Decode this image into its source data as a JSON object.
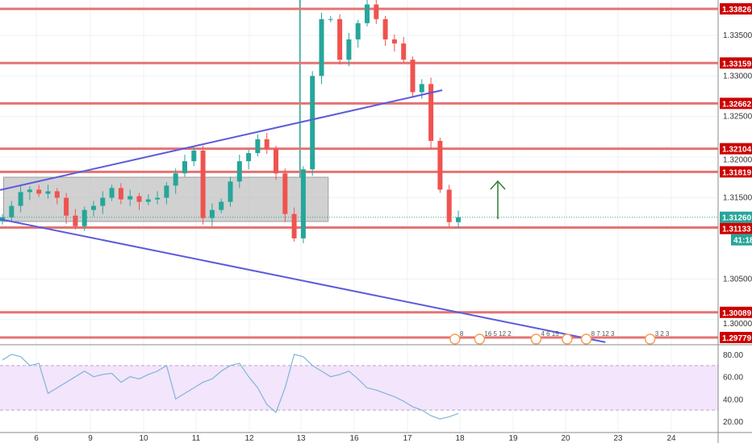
{
  "chart_data": {
    "type": "candlestick",
    "price_axis": {
      "ticks": [
        "1.33500",
        "1.33000",
        "1.32500",
        "1.32000",
        "1.31500",
        "1.30500",
        "1.30000"
      ],
      "range": [
        1.2965,
        1.3393
      ]
    },
    "x_axis": {
      "ticks": [
        "6",
        "9",
        "10",
        "11",
        "12",
        "13",
        "16",
        "17",
        "18",
        "19",
        "20",
        "23",
        "24"
      ]
    },
    "closes": [
      1.3126,
      1.314,
      1.3157,
      1.316,
      1.3155,
      1.3158,
      1.315,
      1.3128,
      1.3115,
      1.3135,
      1.314,
      1.315,
      1.3162,
      1.3148,
      1.3152,
      1.3145,
      1.3148,
      1.315,
      1.3165,
      1.318,
      1.3195,
      1.3208,
      1.3125,
      1.3135,
      1.3145,
      1.317,
      1.3195,
      1.3205,
      1.3222,
      1.321,
      1.318,
      1.313,
      1.31,
      1.3185,
      1.33,
      1.337,
      1.337,
      1.332,
      1.3345,
      1.3365,
      1.3388,
      1.337,
      1.3345,
      1.334,
      1.332,
      1.328,
      1.329,
      1.322,
      1.316,
      1.312,
      1.3126
    ],
    "horizontal_levels": [
      "1.33826",
      "1.33159",
      "1.32662",
      "1.32104",
      "1.31819",
      "1.31133",
      "1.30089",
      "1.29779"
    ],
    "current_price": "1.31260",
    "countdown": "41:18",
    "trend_lines": [
      {
        "from": [
          0,
          1.31595
        ],
        "to": [
          48.5,
          1.32824
        ]
      },
      {
        "from": [
          0,
          1.31237
        ],
        "to": [
          66.4,
          1.29721
        ]
      }
    ],
    "range_box": {
      "from_bar": 0.4,
      "to_bar": 36,
      "top": 1.31753,
      "bottom": 1.31208
    },
    "vertical_marker_bar": 32.9,
    "arrow": {
      "bar": 54.6,
      "from": 1.31238,
      "to": 1.31704,
      "direction": "up"
    },
    "events": [
      {
        "bar": 49.9,
        "label": "8"
      },
      {
        "bar": 52.6,
        "label": "16 5 12 2"
      },
      {
        "bar": 58.8,
        "label": "4 6 15"
      },
      {
        "bar": 62.2,
        "label": ""
      },
      {
        "bar": 64.3,
        "label": "8 7 12 3"
      },
      {
        "bar": 71.3,
        "label": "3 2 3"
      }
    ],
    "rsi": {
      "ticks": [
        "80.00",
        "60.00",
        "40.00",
        "20.00"
      ],
      "band": [
        30,
        70
      ],
      "values": [
        75,
        80,
        78,
        70,
        72,
        45,
        50,
        55,
        60,
        65,
        60,
        62,
        63,
        55,
        60,
        58,
        62,
        65,
        70,
        40,
        45,
        50,
        55,
        58,
        65,
        70,
        72,
        60,
        50,
        35,
        28,
        50,
        80,
        78,
        70,
        65,
        60,
        62,
        65,
        58,
        50,
        48,
        45,
        42,
        38,
        33,
        30,
        25,
        22,
        24,
        27
      ]
    },
    "colors": {
      "up": "#26a69a",
      "down": "#ef5350",
      "level": "#e57373",
      "level_tag": "#cc0000",
      "trend": "#5b5bdb",
      "current": "#26a69a",
      "rsi_line": "#7eb6d9",
      "rsi_band": "#f3e5fb",
      "arrow": "#2e7d32"
    }
  }
}
